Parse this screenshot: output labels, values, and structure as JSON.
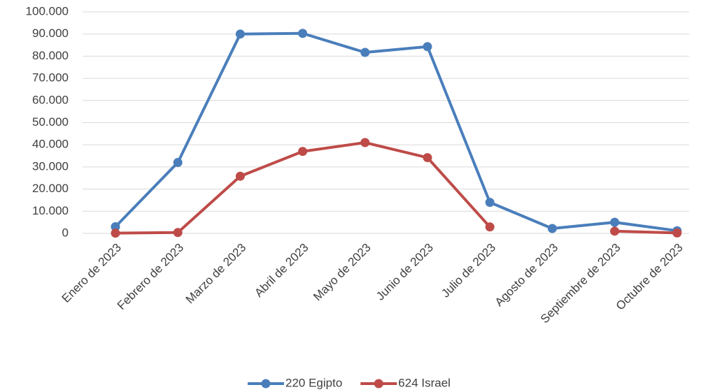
{
  "chart_data": {
    "type": "line",
    "categories": [
      "Enero de 2023",
      "Febrero de 2023",
      "Marzo de 2023",
      "Abril de 2023",
      "Mayo de 2023",
      "Junio de 2023",
      "Julio de 2023",
      "Agosto de 2023",
      "Septiembre de 2023",
      "Octubre de 2023"
    ],
    "series": [
      {
        "name": "220 Egipto",
        "color": "#4a7ebb",
        "values": [
          3000,
          32000,
          90000,
          90300,
          81700,
          84300,
          14000,
          2200,
          5000,
          1200
        ]
      },
      {
        "name": "624 Israel",
        "color": "#be4b48",
        "values": [
          100,
          400,
          25800,
          37000,
          41000,
          34200,
          2900,
          null,
          1000,
          200
        ]
      }
    ],
    "ylim": [
      0,
      100000
    ],
    "yticks": [
      0,
      {
        "value": 10000,
        "label": "10.000"
      },
      {
        "value": 20000,
        "label": "20.000"
      },
      {
        "value": 30000,
        "label": "30.000"
      },
      {
        "value": 40000,
        "label": "40.000"
      },
      {
        "value": 50000,
        "label": "50.000"
      },
      {
        "value": 60000,
        "label": "60.000"
      },
      {
        "value": 70000,
        "label": "70.000"
      },
      {
        "value": 80000,
        "label": "80.000"
      },
      {
        "value": 90000,
        "label": "90.000"
      },
      {
        "value": 100000,
        "label": "100.000"
      }
    ],
    "grid": true,
    "legend": "bottom"
  }
}
